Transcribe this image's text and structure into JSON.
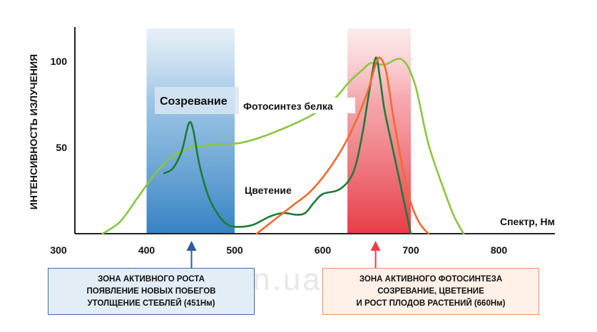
{
  "chart_data": {
    "type": "line",
    "title": "",
    "xlabel": "Спектр, Нм",
    "ylabel": "ИНТЕНСИВНОСТЬ ИЗЛУЧЕНИЯ",
    "xlim": [
      300,
      800
    ],
    "ylim": [
      0,
      100
    ],
    "x_ticks": [
      "300",
      "400",
      "500",
      "600",
      "700",
      "800"
    ],
    "y_ticks": [
      "50",
      "100"
    ],
    "grid": false,
    "bands": [
      {
        "name": "blue",
        "from": 400,
        "to": 500,
        "color": "#2f7fc1"
      },
      {
        "name": "red",
        "from": 628,
        "to": 700,
        "color": "#e8404a"
      }
    ],
    "series": [
      {
        "name": "Фотосинтез белка",
        "color": "#8cc63f",
        "points": [
          [
            350,
            0
          ],
          [
            370,
            7
          ],
          [
            390,
            21
          ],
          [
            410,
            35
          ],
          [
            430,
            45
          ],
          [
            450,
            50
          ],
          [
            465,
            51
          ],
          [
            480,
            52
          ],
          [
            495,
            52
          ],
          [
            510,
            53
          ],
          [
            530,
            56
          ],
          [
            560,
            62
          ],
          [
            585,
            68
          ],
          [
            600,
            73
          ],
          [
            615,
            79
          ],
          [
            630,
            88
          ],
          [
            645,
            95
          ],
          [
            655,
            99
          ],
          [
            670,
            98
          ],
          [
            690,
            101
          ],
          [
            705,
            86
          ],
          [
            720,
            52
          ],
          [
            740,
            22
          ],
          [
            750,
            9
          ],
          [
            760,
            0
          ]
        ]
      },
      {
        "name": "Цветение",
        "color": "#1f7a37",
        "points": [
          [
            420,
            35
          ],
          [
            430,
            38
          ],
          [
            440,
            48
          ],
          [
            448,
            64
          ],
          [
            453,
            60
          ],
          [
            460,
            40
          ],
          [
            470,
            22
          ],
          [
            480,
            12
          ],
          [
            490,
            6
          ],
          [
            500,
            4
          ],
          [
            520,
            5
          ],
          [
            540,
            10
          ],
          [
            555,
            12
          ],
          [
            570,
            11
          ],
          [
            580,
            12
          ],
          [
            590,
            18
          ],
          [
            600,
            23
          ],
          [
            620,
            26
          ],
          [
            635,
            36
          ],
          [
            645,
            58
          ],
          [
            652,
            80
          ],
          [
            660,
            102
          ],
          [
            665,
            90
          ],
          [
            670,
            72
          ],
          [
            680,
            48
          ],
          [
            690,
            24
          ],
          [
            700,
            0
          ]
        ]
      },
      {
        "name": "",
        "color": "#f26a2e",
        "points": [
          [
            525,
            0
          ],
          [
            545,
            8
          ],
          [
            565,
            16
          ],
          [
            585,
            24
          ],
          [
            605,
            36
          ],
          [
            625,
            52
          ],
          [
            640,
            68
          ],
          [
            652,
            84
          ],
          [
            660,
            98
          ],
          [
            665,
            102
          ],
          [
            672,
            94
          ],
          [
            680,
            68
          ],
          [
            690,
            40
          ],
          [
            700,
            18
          ],
          [
            710,
            6
          ],
          [
            720,
            0
          ]
        ]
      }
    ],
    "labels": {
      "ripening": "Созревание",
      "protein": "Фотосинтез белка",
      "flowering": "Цветение"
    }
  },
  "markers": [
    {
      "x": 451,
      "color": "#2d5d9a"
    },
    {
      "x": 660,
      "color": "#e8404a"
    }
  ],
  "info": {
    "left": {
      "lines": [
        "ЗОНА АКТИВНОГО РОСТА",
        "ПОЯВЛЕНИЕ НОВЫХ ПОБЕГОВ",
        "УТОЛЩЕНИЕ СТЕБЛЕЙ (451Нм)"
      ]
    },
    "right": {
      "lines": [
        "ЗОНА АКТИВНОГО ФОТОСИНТЕЗА",
        "СОЗРЕВАНИЕ, ЦВЕТЕНИЕ",
        "И РОСТ ПЛОДОВ РАСТЕНИЙ (660Нм)"
      ]
    }
  },
  "watermark": "fito-led.in.ua"
}
